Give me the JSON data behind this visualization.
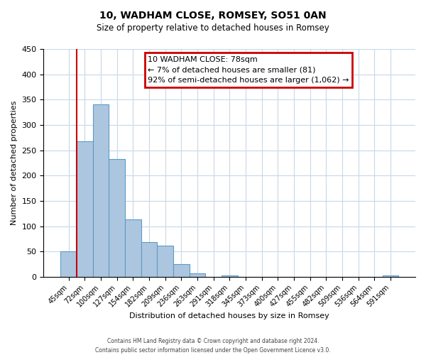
{
  "title": "10, WADHAM CLOSE, ROMSEY, SO51 0AN",
  "subtitle": "Size of property relative to detached houses in Romsey",
  "xlabel": "Distribution of detached houses by size in Romsey",
  "ylabel": "Number of detached properties",
  "bar_labels": [
    "45sqm",
    "72sqm",
    "100sqm",
    "127sqm",
    "154sqm",
    "182sqm",
    "209sqm",
    "236sqm",
    "263sqm",
    "291sqm",
    "318sqm",
    "345sqm",
    "373sqm",
    "400sqm",
    "427sqm",
    "455sqm",
    "482sqm",
    "509sqm",
    "536sqm",
    "564sqm",
    "591sqm"
  ],
  "bar_values": [
    50,
    267,
    340,
    232,
    114,
    68,
    62,
    25,
    7,
    0,
    2,
    0,
    0,
    0,
    0,
    0,
    0,
    0,
    0,
    0,
    3
  ],
  "bar_color": "#adc6e0",
  "bar_edge_color": "#5a9bc8",
  "ylim": [
    0,
    450
  ],
  "yticks": [
    0,
    50,
    100,
    150,
    200,
    250,
    300,
    350,
    400,
    450
  ],
  "annotation_title": "10 WADHAM CLOSE: 78sqm",
  "annotation_line1": "← 7% of detached houses are smaller (81)",
  "annotation_line2": "92% of semi-detached houses are larger (1,062) →",
  "red_line_x": 0.5,
  "box_color": "#cc0000",
  "footer1": "Contains HM Land Registry data © Crown copyright and database right 2024.",
  "footer2": "Contains public sector information licensed under the Open Government Licence v3.0.",
  "background_color": "#ffffff",
  "grid_color": "#c8d8e8"
}
